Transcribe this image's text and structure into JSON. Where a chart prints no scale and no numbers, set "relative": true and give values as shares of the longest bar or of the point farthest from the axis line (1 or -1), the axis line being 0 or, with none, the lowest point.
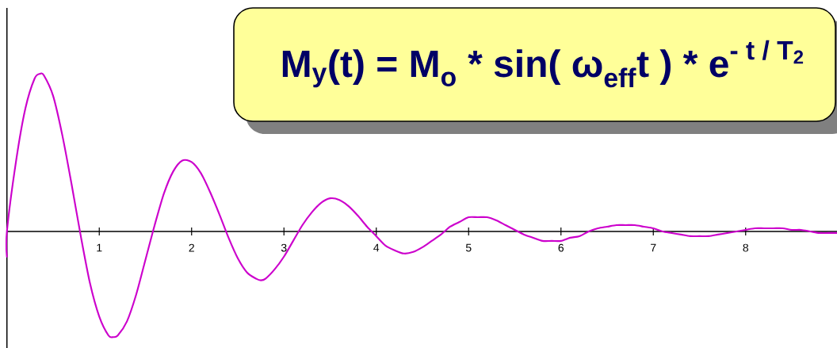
{
  "chart_data": {
    "type": "line",
    "relative": true,
    "annotations": [
      "\\textbf{M}_{\\textbf{y}}\\textbf{(t) = M}_{\\textbf{o}}\\textbf{ * sin( ω}_{\\textbf{eff}}\\textbf{t ) * e}^{\\textbf{- t / T}_{\\textbf{2}}}"
    ],
    "xlim": [
      0,
      9
    ],
    "xticks": [
      1,
      2,
      3,
      4,
      5,
      6,
      7,
      8
    ],
    "x": [
      0,
      0,
      0.1,
      0.2,
      0.3,
      0.36,
      0.4,
      0.5,
      0.6,
      0.7,
      0.8,
      0.9,
      1.0,
      1.1,
      1.15,
      1.2,
      1.3,
      1.4,
      1.5,
      1.6,
      1.7,
      1.8,
      1.9,
      2.0,
      2.1,
      2.2,
      2.3,
      2.4,
      2.5,
      2.6,
      2.7,
      2.75,
      2.8,
      2.9,
      3.0,
      3.1,
      3.2,
      3.3,
      3.4,
      3.5,
      3.6,
      3.7,
      3.8,
      3.9,
      4.0,
      4.1,
      4.2,
      4.3,
      4.4,
      4.5,
      4.6,
      4.7,
      4.8,
      4.9,
      5.0,
      5.1,
      5.2,
      5.3,
      5.4,
      5.5,
      5.6,
      5.7,
      5.8,
      5.9,
      6.0,
      6.1,
      6.2,
      6.3,
      6.4,
      6.5,
      6.6,
      6.7,
      6.8,
      6.9,
      7.0,
      7.1,
      7.2,
      7.3,
      7.4,
      7.5,
      7.6,
      7.7,
      7.8,
      7.9,
      8.0,
      8.1,
      8.2,
      8.3,
      8.4,
      8.5,
      8.6,
      8.7,
      8.8,
      8.9,
      9.0
    ],
    "series": [
      {
        "color": "#cc00cc",
        "values": [
          -0.16,
          0,
          0.45,
          0.78,
          0.97,
          1,
          0.99,
          0.86,
          0.61,
          0.3,
          -0.03,
          -0.33,
          -0.54,
          -0.66,
          -0.67,
          -0.66,
          -0.57,
          -0.4,
          -0.18,
          0.04,
          0.24,
          0.38,
          0.45,
          0.44,
          0.37,
          0.25,
          0.11,
          -0.04,
          -0.17,
          -0.26,
          -0.3,
          -0.31,
          -0.3,
          -0.24,
          -0.16,
          -0.06,
          0.04,
          0.12,
          0.18,
          0.21,
          0.2,
          0.16,
          0.1,
          0.03,
          -0.03,
          -0.09,
          -0.12,
          -0.14,
          -0.13,
          -0.1,
          -0.06,
          -0.02,
          0.03,
          0.06,
          0.09,
          0.09,
          0.09,
          0.07,
          0.04,
          0.01,
          -0.02,
          -0.04,
          -0.06,
          -0.06,
          -0.06,
          -0.04,
          -0.03,
          0,
          0.02,
          0.03,
          0.04,
          0.04,
          0.04,
          0.03,
          0.02,
          0,
          -0.01,
          -0.02,
          -0.03,
          -0.03,
          -0.03,
          -0.02,
          -0.01,
          0,
          0.01,
          0.02,
          0.02,
          0.02,
          0.02,
          0.01,
          0.01,
          0,
          -0.01,
          -0.01,
          -0.01
        ]
      }
    ]
  }
}
